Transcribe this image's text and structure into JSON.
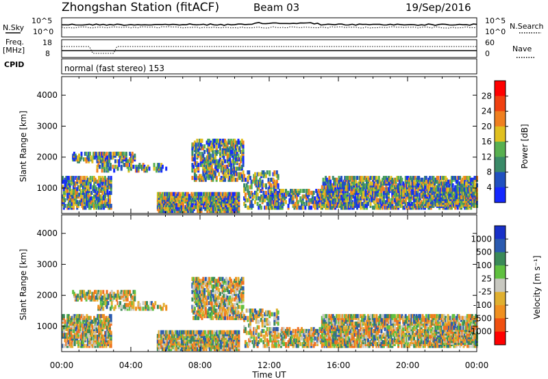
{
  "header": {
    "station": "Zhongshan Station (fitACF)",
    "beam": "Beam 03",
    "date": "19/Sep/2016"
  },
  "top_panel": {
    "left_label": "N.Sky",
    "left_ticks": [
      "10^5",
      "10^0"
    ],
    "right_ticks": [
      "10^5",
      "10^0"
    ],
    "right_label": "N.Search"
  },
  "freq_panel": {
    "left_label_top": "Freq.",
    "left_label_units": "[MHz]",
    "left_ticks": [
      "18",
      "8"
    ],
    "right_ticks": [
      "60",
      "0"
    ],
    "right_label": "Nave"
  },
  "cpid": {
    "label": "CPID",
    "value": "normal (fast stereo) 153"
  },
  "chart_data": [
    {
      "type": "heatmap",
      "name": "power",
      "ylabel": "Slant Range [km]",
      "ylim": [
        180,
        4600
      ],
      "yticks": [
        "1000",
        "2000",
        "3000",
        "4000"
      ],
      "colorbar_label": "Power [dB]",
      "colorbar_ticks": [
        "4",
        "8",
        "12",
        "16",
        "20",
        "24",
        "28"
      ],
      "colors": [
        "#1428ff",
        "#2050c0",
        "#3a8a68",
        "#58b050",
        "#e0c020",
        "#f08020",
        "#f04010",
        "#ff0000"
      ]
    },
    {
      "type": "heatmap",
      "name": "velocity",
      "ylabel": "Slant Range [km]",
      "ylim": [
        180,
        4600
      ],
      "yticks": [
        "1000",
        "2000",
        "3000",
        "4000"
      ],
      "colorbar_label": "Velocity [m s⁻¹]",
      "colorbar_ticks": [
        "1000",
        "500",
        "100",
        "25",
        "-25",
        "-100",
        "-500",
        "-1000"
      ],
      "colors": [
        "#1830c8",
        "#2a5ab0",
        "#3a8a58",
        "#60c040",
        "#c8c8c0",
        "#e0b030",
        "#f09020",
        "#f05010",
        "#ff0000"
      ]
    }
  ],
  "xaxis": {
    "ticks": [
      "00:00",
      "04:00",
      "08:00",
      "12:00",
      "16:00",
      "20:00",
      "00:00"
    ],
    "label": "Time UT"
  }
}
